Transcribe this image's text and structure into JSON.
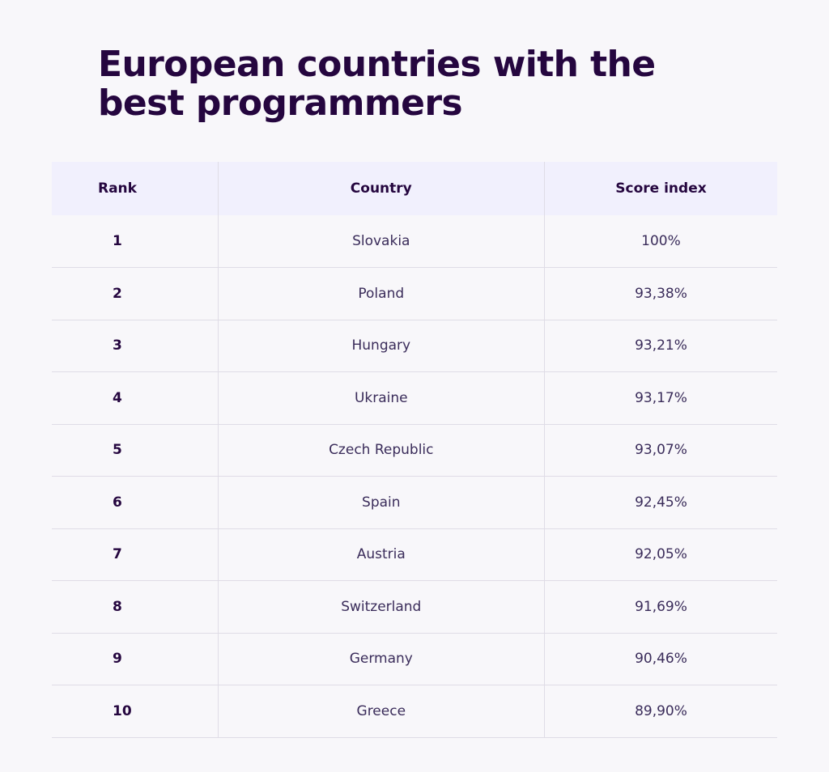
{
  "title": "European countries with the best programmers",
  "chart_data": {
    "type": "table",
    "title": "European countries with the best programmers",
    "columns": [
      "Rank",
      "Country",
      "Score index"
    ],
    "rows": [
      {
        "rank": "1",
        "country": "Slovakia",
        "score": "100%"
      },
      {
        "rank": "2",
        "country": "Poland",
        "score": "93,38%"
      },
      {
        "rank": "3",
        "country": "Hungary",
        "score": "93,21%"
      },
      {
        "rank": "4",
        "country": "Ukraine",
        "score": "93,17%"
      },
      {
        "rank": "5",
        "country": "Czech Republic",
        "score": "93,07%"
      },
      {
        "rank": "6",
        "country": "Spain",
        "score": "92,45%"
      },
      {
        "rank": "7",
        "country": "Austria",
        "score": "92,05%"
      },
      {
        "rank": "8",
        "country": "Switzerland",
        "score": "91,69%"
      },
      {
        "rank": "9",
        "country": "Germany",
        "score": "90,46%"
      },
      {
        "rank": "10",
        "country": "Greece",
        "score": "89,90%"
      }
    ]
  },
  "colors": {
    "background": "#f8f7fa",
    "header_background": "#f1f0fd",
    "title": "#25063f",
    "divider": "#dfdce6"
  }
}
